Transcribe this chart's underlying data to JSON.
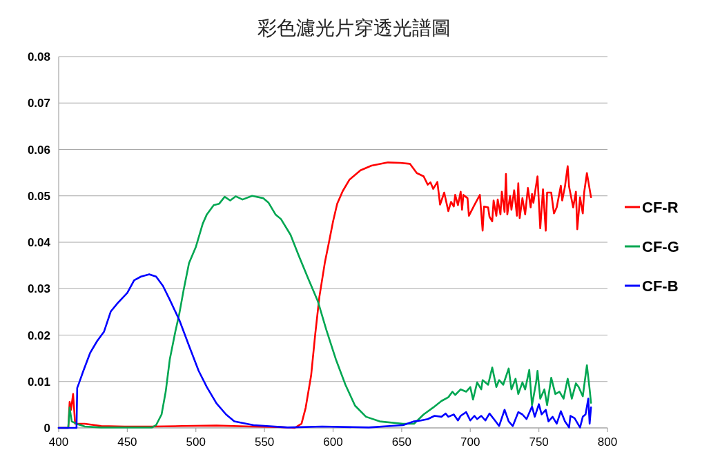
{
  "chart_data": {
    "type": "line",
    "title": "彩色濾光片穿透光譜圖",
    "xlim": [
      400,
      800
    ],
    "xticks": [
      400,
      450,
      500,
      550,
      600,
      650,
      700,
      750,
      800
    ],
    "ylim": [
      0,
      0.08
    ],
    "yticks": [
      0,
      0.01,
      0.02,
      0.03,
      0.04,
      0.05,
      0.06,
      0.07,
      0.08
    ],
    "grid": "y",
    "legend": "right",
    "marker": "none",
    "line_style": "solid",
    "series": [
      {
        "name": "CF-R",
        "color": "#ff0000",
        "x": [
          400,
          407,
          408,
          409,
          410.5,
          412,
          414,
          419,
          431,
          448,
          468,
          490,
          515,
          540,
          560,
          572,
          577,
          580,
          584,
          587,
          590,
          594,
          597,
          600,
          603,
          607,
          612,
          620,
          628,
          640,
          649,
          656,
          661,
          666,
          669,
          671,
          673,
          676,
          678,
          681,
          684,
          686,
          688,
          689,
          691,
          693,
          694,
          695,
          698,
          699,
          703,
          707,
          709,
          710,
          713,
          714,
          716,
          717,
          719,
          720,
          722,
          723,
          725,
          726,
          727,
          729,
          730,
          732,
          734,
          735,
          736,
          738,
          740,
          742,
          744,
          745,
          746,
          749,
          751,
          753,
          755,
          756,
          759,
          761,
          763,
          766,
          767,
          769,
          771,
          772,
          775,
          777,
          778,
          780,
          782,
          783,
          785,
          788
        ],
        "values": [
          0,
          0,
          0.0056,
          0.0039,
          0.0073,
          0.0009,
          0.0009,
          0.0009,
          0.0004,
          0.0003,
          0.0003,
          0.0004,
          0.0005,
          0.0003,
          0.0002,
          0,
          0.0009,
          0.0043,
          0.0113,
          0.0202,
          0.0282,
          0.0356,
          0.04,
          0.0445,
          0.0483,
          0.051,
          0.0535,
          0.0555,
          0.0565,
          0.0572,
          0.0571,
          0.0569,
          0.0549,
          0.0542,
          0.0524,
          0.0529,
          0.0515,
          0.053,
          0.0481,
          0.0507,
          0.0467,
          0.0487,
          0.0477,
          0.0502,
          0.048,
          0.0509,
          0.047,
          0.0502,
          0.0495,
          0.0457,
          0.048,
          0.0502,
          0.0425,
          0.0477,
          0.0475,
          0.0455,
          0.0445,
          0.049,
          0.0457,
          0.0492,
          0.046,
          0.0509,
          0.0465,
          0.0547,
          0.046,
          0.05,
          0.047,
          0.0512,
          0.0457,
          0.0527,
          0.0452,
          0.0495,
          0.046,
          0.0517,
          0.0475,
          0.0504,
          0.0485,
          0.0542,
          0.043,
          0.0514,
          0.0425,
          0.0507,
          0.0507,
          0.0462,
          0.0475,
          0.0522,
          0.049,
          0.052,
          0.0564,
          0.052,
          0.0475,
          0.0509,
          0.0428,
          0.0497,
          0.0462,
          0.0507,
          0.0549,
          0.0497
        ]
      },
      {
        "name": "CF-G",
        "color": "#00a651",
        "x": [
          400,
          407,
          408,
          409.5,
          413,
          419,
          431,
          468,
          471,
          475,
          478,
          481,
          485,
          488,
          491,
          495,
          500,
          505,
          508,
          513,
          517,
          521,
          525,
          529,
          534,
          541,
          549,
          553,
          558,
          562,
          569,
          575,
          582,
          589,
          595,
          602,
          609,
          616,
          624,
          634,
          651,
          659,
          666,
          673,
          679,
          684,
          687,
          689,
          693,
          697,
          700,
          702,
          705,
          708,
          709,
          713,
          716,
          719,
          721,
          724,
          728,
          730,
          733,
          735,
          738,
          740,
          743,
          745,
          748,
          749,
          751,
          754,
          756,
          759,
          762,
          765,
          768,
          771,
          774,
          777,
          779,
          782,
          785,
          787,
          788
        ],
        "values": [
          0,
          0,
          0.0044,
          0.0014,
          0.0009,
          0.0003,
          0.0001,
          0.0001,
          0.0006,
          0.0029,
          0.0078,
          0.0148,
          0.0207,
          0.0247,
          0.0296,
          0.0355,
          0.039,
          0.044,
          0.046,
          0.048,
          0.0483,
          0.0498,
          0.049,
          0.0499,
          0.0492,
          0.05,
          0.0495,
          0.0485,
          0.046,
          0.045,
          0.0416,
          0.0371,
          0.0321,
          0.0272,
          0.0212,
          0.0148,
          0.0093,
          0.0048,
          0.0024,
          0.0014,
          0.0009,
          0.0009,
          0.0029,
          0.0044,
          0.0058,
          0.0066,
          0.0078,
          0.0071,
          0.0083,
          0.0078,
          0.0088,
          0.0061,
          0.0098,
          0.0083,
          0.0103,
          0.0093,
          0.013,
          0.0088,
          0.0103,
          0.0093,
          0.0128,
          0.0083,
          0.0106,
          0.0073,
          0.0098,
          0.0083,
          0.0125,
          0.0049,
          0.0098,
          0.0123,
          0.0063,
          0.0083,
          0.0049,
          0.0108,
          0.0073,
          0.0078,
          0.0063,
          0.0106,
          0.0063,
          0.0096,
          0.0088,
          0.0068,
          0.0135,
          0.0083,
          0.0054
        ]
      },
      {
        "name": "CF-B",
        "color": "#0000ff",
        "x": [
          400,
          407,
          413,
          413.5,
          415,
          418,
          423,
          428,
          433,
          438,
          443,
          450,
          455,
          460,
          466,
          471,
          476,
          481,
          488,
          495,
          502,
          508,
          515,
          522,
          528,
          542,
          567,
          592,
          626,
          651,
          659,
          664,
          669,
          674,
          679,
          682,
          684,
          688,
          691,
          693,
          697,
          700,
          703,
          705,
          708,
          711,
          714,
          718,
          721,
          725,
          728,
          731,
          735,
          738,
          741,
          745,
          747,
          750,
          752,
          755,
          757,
          760,
          763,
          766,
          769,
          772,
          773,
          776,
          780,
          782,
          784,
          786,
          787,
          788
        ],
        "values": [
          0,
          0,
          0,
          0.0086,
          0.0098,
          0.0123,
          0.0162,
          0.0187,
          0.0207,
          0.0251,
          0.0269,
          0.0291,
          0.0318,
          0.0326,
          0.0331,
          0.0326,
          0.0306,
          0.0276,
          0.0232,
          0.0177,
          0.0123,
          0.0088,
          0.0053,
          0.0029,
          0.0014,
          0.0006,
          0.0001,
          0.0003,
          0.0001,
          0.0006,
          0.0014,
          0.0016,
          0.0019,
          0.0026,
          0.0024,
          0.0031,
          0.0024,
          0.0029,
          0.0016,
          0.0026,
          0.0034,
          0.0016,
          0.0026,
          0.0019,
          0.0026,
          0.0016,
          0.0031,
          0.0016,
          0.0004,
          0.0039,
          0.0014,
          0.0004,
          0.0034,
          0.0029,
          0.0019,
          0.0046,
          0.0024,
          0.0051,
          0.0029,
          0.0039,
          0.0014,
          0.0024,
          0.0009,
          0.0036,
          0.0014,
          0.0001,
          0.0026,
          0.0021,
          0.0001,
          0.0024,
          0.0029,
          0.0063,
          0.0009,
          0.0044
        ]
      }
    ]
  }
}
